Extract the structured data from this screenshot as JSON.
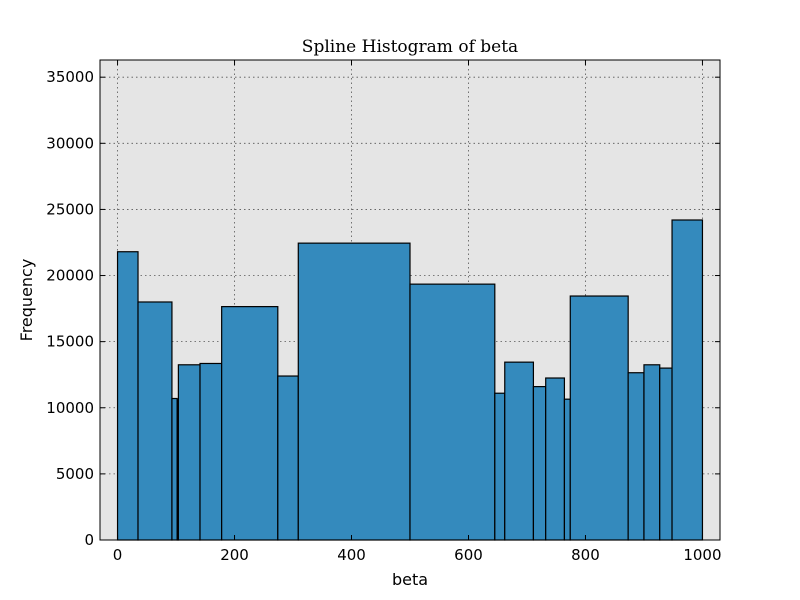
{
  "chart_data": {
    "type": "bar",
    "title": "Spline Histogram of beta",
    "xlabel": "beta",
    "ylabel": "Frequency",
    "xlim": [
      -30,
      1030
    ],
    "ylim": [
      0,
      36300
    ],
    "x_ticks": [
      0,
      200,
      400,
      600,
      800,
      1000
    ],
    "y_ticks": [
      0,
      5000,
      10000,
      15000,
      20000,
      25000,
      30000,
      35000
    ],
    "grid": true,
    "bar_color": "#348abd",
    "plot_background": "#e5e5e5",
    "bins": [
      {
        "x0": 0,
        "x1": 35,
        "value": 21800
      },
      {
        "x0": 35,
        "x1": 93,
        "value": 18000
      },
      {
        "x0": 93,
        "x1": 102,
        "value": 10700
      },
      {
        "x0": 102,
        "x1": 104,
        "value": 10600
      },
      {
        "x0": 104,
        "x1": 141,
        "value": 13250
      },
      {
        "x0": 141,
        "x1": 178,
        "value": 13350
      },
      {
        "x0": 178,
        "x1": 274,
        "value": 17650
      },
      {
        "x0": 274,
        "x1": 309,
        "value": 12400
      },
      {
        "x0": 309,
        "x1": 500,
        "value": 22450
      },
      {
        "x0": 500,
        "x1": 645,
        "value": 19350
      },
      {
        "x0": 645,
        "x1": 662,
        "value": 11100
      },
      {
        "x0": 662,
        "x1": 711,
        "value": 13450
      },
      {
        "x0": 711,
        "x1": 732,
        "value": 11600
      },
      {
        "x0": 732,
        "x1": 764,
        "value": 12250
      },
      {
        "x0": 764,
        "x1": 774,
        "value": 10650
      },
      {
        "x0": 774,
        "x1": 873,
        "value": 18450
      },
      {
        "x0": 873,
        "x1": 900,
        "value": 12650
      },
      {
        "x0": 900,
        "x1": 927,
        "value": 13250
      },
      {
        "x0": 927,
        "x1": 948,
        "value": 13000
      },
      {
        "x0": 948,
        "x1": 1000,
        "value": 24200
      }
    ]
  }
}
